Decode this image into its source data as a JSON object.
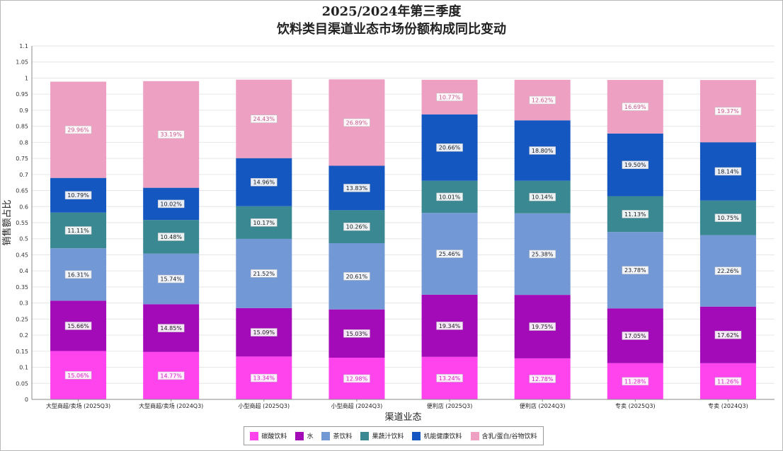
{
  "chart_data": {
    "type": "bar",
    "stacked": true,
    "title": "2025/2024年第三季度",
    "subtitle": "饮料类目渠道业态市场份额构成同比变动",
    "xlabel": "渠道业态",
    "ylabel": "销售额占比",
    "ylim": [
      0,
      1.1
    ],
    "yticks": [
      "0",
      "0.05",
      "0.1",
      "0.15",
      "0.2",
      "0.25",
      "0.3",
      "0.35",
      "0.4",
      "0.45",
      "0.5",
      "0.55",
      "0.6",
      "0.65",
      "0.7",
      "0.75",
      "0.8",
      "0.85",
      "0.9",
      "0.95",
      "1",
      "1.05",
      "1.1"
    ],
    "grid": true,
    "legend_position": "bottom",
    "categories": [
      "大型商超/卖场 (2025Q3)",
      "大型商超/卖场 (2024Q3)",
      "小型商超 (2025Q3)",
      "小型商超 (2024Q3)",
      "便利店 (2025Q3)",
      "便利店 (2024Q3)",
      "专卖 (2025Q3)",
      "专卖 (2024Q3)"
    ],
    "series": [
      {
        "name": "碳酸饮料",
        "color": "#ff44ee",
        "values": [
          0.1506,
          0.1477,
          0.1334,
          0.1298,
          0.1324,
          0.1278,
          0.1128,
          0.1126
        ],
        "labels": [
          "15.06%",
          "14.77%",
          "13.34%",
          "12.98%",
          "13.24%",
          "12.78%",
          "11.28%",
          "11.26%"
        ]
      },
      {
        "name": "水",
        "color": "#a30ab8",
        "values": [
          0.1566,
          0.1485,
          0.1509,
          0.1503,
          0.1934,
          0.1975,
          0.1705,
          0.1762
        ],
        "labels": [
          "15.66%",
          "14.85%",
          "15.09%",
          "15.03%",
          "19.34%",
          "19.75%",
          "17.05%",
          "17.62%"
        ]
      },
      {
        "name": "茶饮料",
        "color": "#7299d6",
        "values": [
          0.1631,
          0.1574,
          0.2152,
          0.2061,
          0.2546,
          0.2538,
          0.2378,
          0.2226
        ],
        "labels": [
          "16.31%",
          "15.74%",
          "21.52%",
          "20.61%",
          "25.46%",
          "25.38%",
          "23.78%",
          "22.26%"
        ]
      },
      {
        "name": "果蔬汁饮料",
        "color": "#3a8892",
        "values": [
          0.1111,
          0.1048,
          0.1017,
          0.1026,
          0.1001,
          0.1014,
          0.1113,
          0.1075
        ],
        "labels": [
          "11.11%",
          "10.48%",
          "10.17%",
          "10.26%",
          "10.01%",
          "10.14%",
          "11.13%",
          "10.75%"
        ]
      },
      {
        "name": "机能健康饮料",
        "color": "#1457c0",
        "values": [
          0.1079,
          0.1002,
          0.1496,
          0.1383,
          0.2066,
          0.188,
          0.195,
          0.1814
        ],
        "labels": [
          "10.79%",
          "10.02%",
          "14.96%",
          "13.83%",
          "20.66%",
          "18.80%",
          "19.50%",
          "18.14%"
        ]
      },
      {
        "name": "含乳/蛋白/谷物饮料",
        "color": "#eda0c2",
        "values": [
          0.2996,
          0.3319,
          0.2443,
          0.2689,
          0.1077,
          0.1262,
          0.1669,
          0.1937
        ],
        "labels": [
          "29.96%",
          "33.19%",
          "24.43%",
          "26.89%",
          "10.77%",
          "12.62%",
          "16.69%",
          "19.37%"
        ]
      }
    ]
  }
}
